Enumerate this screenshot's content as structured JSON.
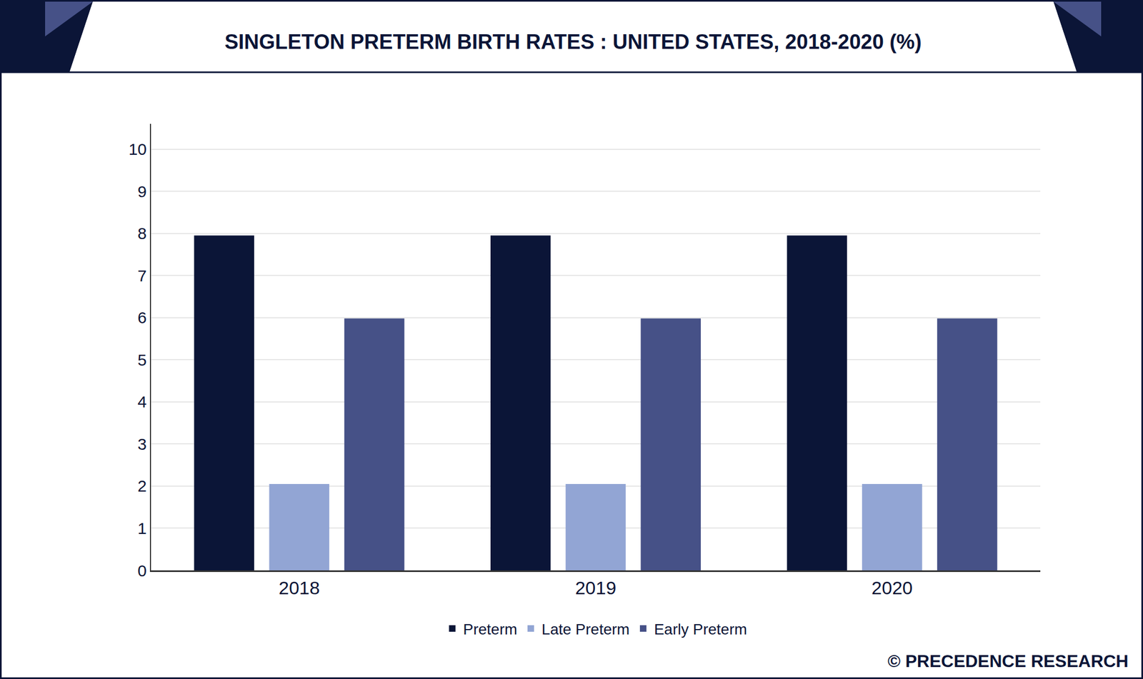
{
  "chart_data": {
    "type": "bar",
    "title": "SINGLETON PRETERM BIRTH RATES : UNITED STATES, 2018-2020 (%)",
    "categories": [
      "2018",
      "2019",
      "2020"
    ],
    "series": [
      {
        "name": "Preterm",
        "color": "#0b1537",
        "values": [
          7.95,
          7.95,
          7.95
        ]
      },
      {
        "name": "Late Preterm",
        "color": "#92a5d4",
        "values": [
          2.05,
          2.05,
          2.05
        ]
      },
      {
        "name": "Early Preterm",
        "color": "#465187",
        "values": [
          5.98,
          5.98,
          5.98
        ]
      }
    ],
    "ylim": [
      0,
      10.6
    ],
    "yticks": [
      0,
      1,
      2,
      3,
      4,
      5,
      6,
      7,
      8,
      9,
      10
    ],
    "grid": true,
    "legend": "bottom",
    "source": "© PRECEDENCE RESEARCH"
  }
}
